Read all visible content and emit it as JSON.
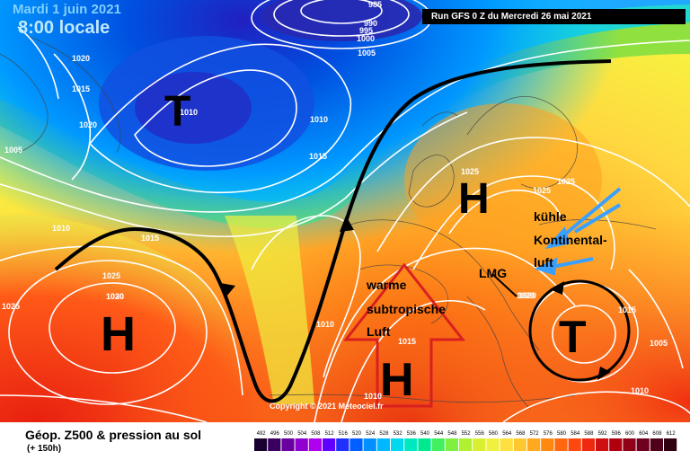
{
  "header": {
    "date": "Mardi 1 juin 2021",
    "time": "8:00 locale",
    "run": "Run GFS 0 Z du Mercredi 26 mai 2021"
  },
  "map": {
    "isobar_labels": [
      "985",
      "990",
      "995",
      "1000",
      "1005",
      "1020",
      "1015",
      "1020",
      "1005",
      "1010",
      "1015",
      "1010",
      "1015",
      "1020",
      "1025",
      "1030",
      "1025",
      "1010",
      "1015",
      "1020",
      "1025",
      "1025",
      "1025",
      "1020",
      "1015",
      "1005",
      "1010",
      "1010",
      "1010"
    ],
    "systems": [
      {
        "label": "T",
        "name": "low-north-atlantic"
      },
      {
        "label": "H",
        "name": "high-atlantic"
      },
      {
        "label": "H",
        "name": "high-scandinavia"
      },
      {
        "label": "H",
        "name": "high-north-africa"
      },
      {
        "label": "T",
        "name": "low-eastern-europe"
      }
    ],
    "annotations": {
      "warm_air": [
        "warme",
        "subtropische",
        "Luft"
      ],
      "cold_air": [
        "kühle",
        "Kontinental-",
        "luft"
      ],
      "lmg": "LMG"
    },
    "copyright": "Copyright © 2021 Meteociel.fr"
  },
  "footer": {
    "title": "Géop. Z500 & pression au sol",
    "subtitle": "(+ 150h)",
    "scale_labels": [
      "492",
      "496",
      "500",
      "504",
      "508",
      "512",
      "516",
      "520",
      "524",
      "528",
      "532",
      "536",
      "540",
      "544",
      "548",
      "552",
      "556",
      "560",
      "564",
      "568",
      "572",
      "576",
      "580",
      "584",
      "588",
      "592",
      "596",
      "600",
      "604",
      "608",
      "612"
    ],
    "scale_colors": [
      "#1a0030",
      "#3a0060",
      "#6a00a0",
      "#9000d0",
      "#b000f0",
      "#6000ff",
      "#2030ff",
      "#0060ff",
      "#0090ff",
      "#00b8ff",
      "#00d8f0",
      "#00e8c0",
      "#00e890",
      "#40f060",
      "#80f040",
      "#b0f030",
      "#d8f030",
      "#f0f040",
      "#ffe040",
      "#ffc830",
      "#ffa820",
      "#ff8810",
      "#ff6810",
      "#ff4810",
      "#f02810",
      "#d01010",
      "#b00010",
      "#900018",
      "#700020",
      "#500018",
      "#300010"
    ]
  }
}
